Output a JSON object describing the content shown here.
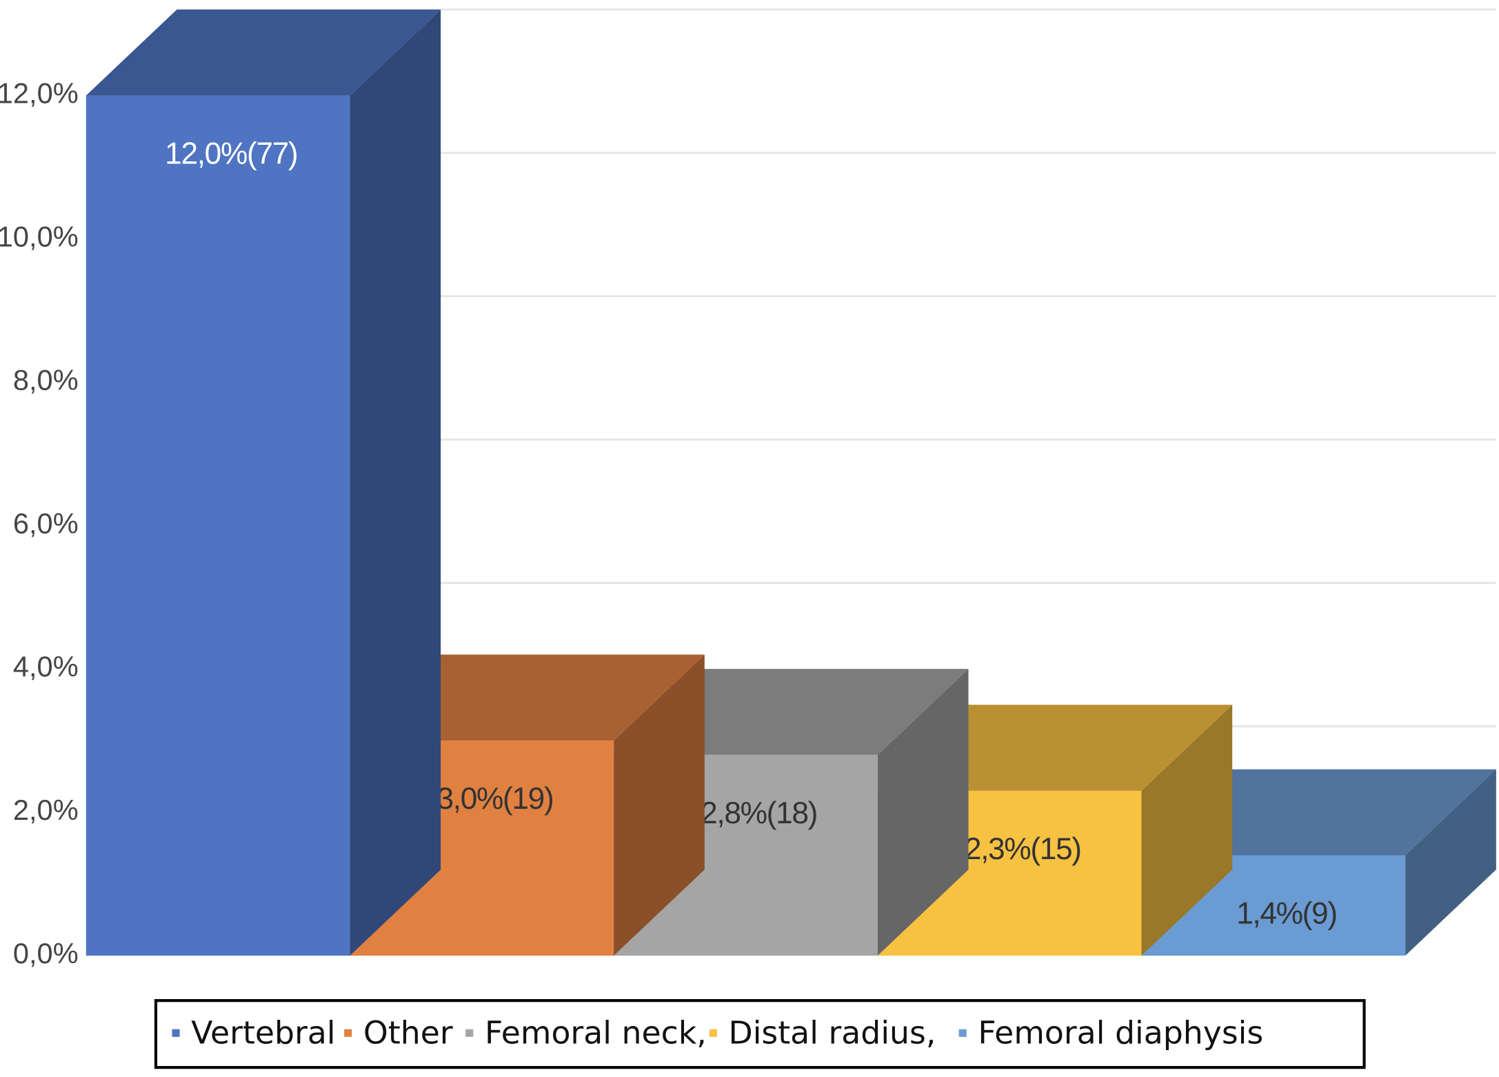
{
  "chart_data": {
    "type": "bar3d",
    "categories": [
      "Vertebral",
      "Other",
      "Femoral neck,",
      "Distal radius,",
      "Femoral diaphysis"
    ],
    "values": [
      12.0,
      3.0,
      2.8,
      2.3,
      1.4
    ],
    "value_labels": [
      "12,0%(77)",
      "3,0%(19)",
      "2,8%(18)",
      "2,3%(15)",
      "1,4%(9)"
    ],
    "colors": [
      "#4e74c2",
      "#e08142",
      "#a5a5a5",
      "#f7c142",
      "#6a9bd2"
    ],
    "value_label_colors": [
      "#ffffff",
      "#333333",
      "#333333",
      "#333333",
      "#333333"
    ],
    "ylim": [
      0,
      12
    ],
    "yticks": [
      {
        "value": 0,
        "label": "0,0%"
      },
      {
        "value": 2,
        "label": "2,0%"
      },
      {
        "value": 4,
        "label": "4,0%"
      },
      {
        "value": 6,
        "label": "6,0%"
      },
      {
        "value": 8,
        "label": "8,0%"
      },
      {
        "value": 10,
        "label": "10,0%"
      },
      {
        "value": 12,
        "label": "12,0%"
      }
    ],
    "grid": true,
    "legend": "bottom"
  }
}
